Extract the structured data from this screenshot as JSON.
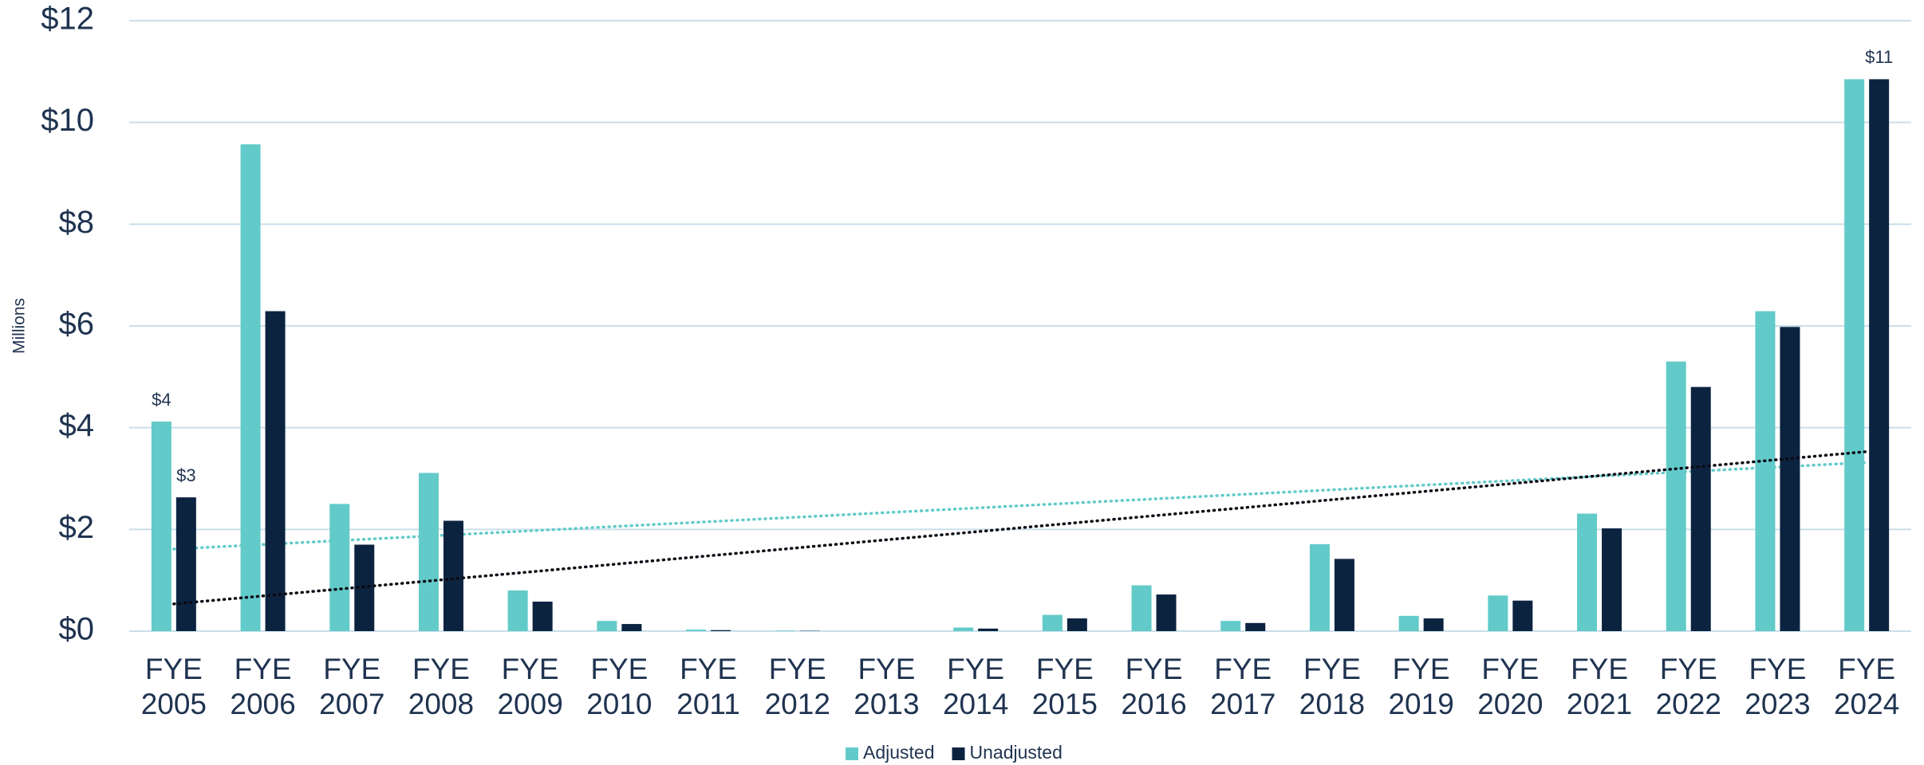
{
  "chart_data": {
    "type": "bar",
    "y_axis_label": "Millions",
    "categories": [
      "FYE 2005",
      "FYE 2006",
      "FYE 2007",
      "FYE 2008",
      "FYE 2009",
      "FYE 2010",
      "FYE 2011",
      "FYE 2012",
      "FYE 2013",
      "FYE 2014",
      "FYE 2015",
      "FYE 2016",
      "FYE 2017",
      "FYE 2018",
      "FYE 2019",
      "FYE 2020",
      "FYE 2021",
      "FYE 2022",
      "FYE 2023",
      "FYE 2024"
    ],
    "series": [
      {
        "name": "Adjusted",
        "color": "#62cbc9",
        "trend_color": "#62cbc9",
        "values": [
          4.12,
          9.57,
          2.5,
          3.11,
          0.8,
          0.2,
          0.03,
          0.01,
          0,
          0.07,
          0.32,
          0.9,
          0.2,
          1.71,
          0.3,
          0.7,
          2.31,
          5.3,
          6.29,
          10.85
        ],
        "value_labels": [
          "$4",
          null,
          null,
          null,
          null,
          null,
          null,
          null,
          null,
          null,
          null,
          null,
          null,
          null,
          null,
          null,
          null,
          null,
          null,
          null
        ]
      },
      {
        "name": "Unadjusted",
        "color": "#0c2340",
        "trend_color": "#0a0a14",
        "values": [
          2.63,
          6.29,
          1.7,
          2.17,
          0.58,
          0.14,
          0.02,
          0.005,
          0,
          0.05,
          0.25,
          0.72,
          0.16,
          1.42,
          0.25,
          0.6,
          2.02,
          4.8,
          5.98,
          10.85
        ],
        "value_labels": [
          "$3",
          null,
          null,
          null,
          null,
          null,
          null,
          null,
          null,
          null,
          null,
          null,
          null,
          null,
          null,
          null,
          null,
          null,
          null,
          "$11"
        ]
      }
    ],
    "ylim": [
      0,
      12
    ],
    "yticks": [
      {
        "value": 0,
        "label": "$0"
      },
      {
        "value": 2,
        "label": "$2"
      },
      {
        "value": 4,
        "label": "$4"
      },
      {
        "value": 6,
        "label": "$6"
      },
      {
        "value": 8,
        "label": "$8"
      },
      {
        "value": 10,
        "label": "$10"
      },
      {
        "value": 12,
        "label": "$12"
      }
    ],
    "grid": true,
    "trendline": true,
    "legend": "bottom"
  }
}
